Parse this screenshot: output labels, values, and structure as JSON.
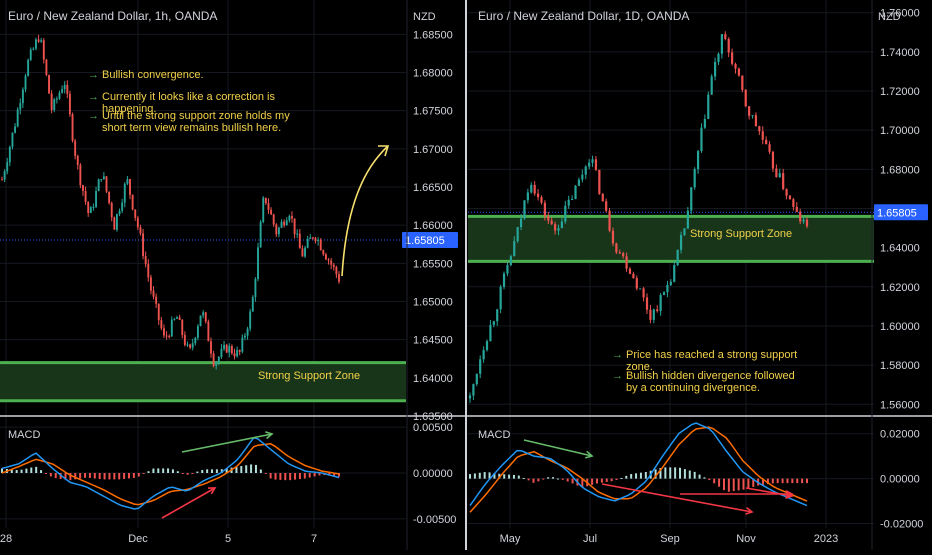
{
  "colors": {
    "background": "#000000",
    "divider": "#d1d4dc",
    "grid": "#15181f",
    "text": "#d1d4dc",
    "bull_candle": "#26a69a",
    "bear_candle": "#ef5350",
    "support_zone_fill": "#18351a",
    "support_zone_border": "#4caf50",
    "support_zone_text": "#f2d14a",
    "annotation_text": "#f2d14a",
    "bullet_arrow": "#4caf50",
    "price_line": "#2962ff",
    "price_label_bg": "#2962ff",
    "macd_line": "#2196f3",
    "signal_line": "#ff6d00",
    "hist_pos": "#b2dfdb",
    "hist_neg": "#ef5350",
    "trend_up_arrow": "#f7e06e",
    "divergence_green": "#66bb6a",
    "divergence_red": "#f23645"
  },
  "icons": {
    "bullet": "arrow-right-icon"
  },
  "panels": [
    {
      "id": "h1",
      "title": "Euro / New Zealand Dollar, 1h, OANDA",
      "currency": "NZD",
      "price_label": "1.65805",
      "zone_label": "Strong Support Zone",
      "macd_label": "MACD",
      "annotations": [
        "Bullish convergence.",
        "Currently it looks like a correction is happening.",
        "Until the strong support zone holds my short term view remains bullish here."
      ]
    },
    {
      "id": "d1",
      "title": "Euro / New Zealand Dollar, 1D, OANDA",
      "currency": "NZD",
      "price_label": "1.65805",
      "zone_label": "Strong Support Zone",
      "macd_label": "MACD",
      "annotations": [
        "Price has reached a strong support zone.",
        "Bullish hidden divergence followed by a continuing divergence."
      ]
    }
  ],
  "chart_data": [
    {
      "type": "candlestick",
      "title": "Euro / New Zealand Dollar, 1h, OANDA",
      "ylabel": "NZD",
      "ylim": [
        1.635,
        1.6895
      ],
      "y_ticks": [
        "1.68500",
        "1.68000",
        "1.67500",
        "1.67000",
        "1.66500",
        "1.66000",
        "1.65500",
        "1.65000",
        "1.64500",
        "1.64000",
        "1.63500"
      ],
      "x_ticks": [
        "28",
        "Dec",
        "5",
        "7"
      ],
      "last_price": 1.65805,
      "support_zone": [
        1.637,
        1.642
      ],
      "price_path": [
        1.666,
        1.673,
        1.681,
        1.685,
        1.675,
        1.679,
        1.668,
        1.661,
        1.667,
        1.66,
        1.666,
        1.659,
        1.651,
        1.645,
        1.648,
        1.643,
        1.649,
        1.642,
        1.644,
        1.643,
        1.649,
        1.664,
        1.659,
        1.662,
        1.656,
        1.659,
        1.656,
        1.653
      ],
      "macd": {
        "ylim": [
          -0.006,
          0.006
        ],
        "y_ticks": [
          "0.00500",
          "0.00000",
          "-0.00500"
        ],
        "macd_path": [
          0.0005,
          0.001,
          0.0022,
          0.0005,
          -0.001,
          -0.0015,
          -0.0025,
          -0.0035,
          -0.004,
          -0.0025,
          -0.0015,
          -0.002,
          -0.0008,
          0.0,
          0.0015,
          0.004,
          0.0025,
          0.001,
          0.0002,
          0.0,
          -0.0005
        ],
        "signal_path": [
          0.0,
          0.0007,
          0.0015,
          0.001,
          -0.0002,
          -0.001,
          -0.0018,
          -0.0028,
          -0.0035,
          -0.003,
          -0.002,
          -0.0018,
          -0.0012,
          -0.0004,
          0.0008,
          0.003,
          0.0032,
          0.0018,
          0.0008,
          0.0002,
          -0.0001
        ],
        "histogram": [
          0.0005,
          0.0003,
          0.0007,
          -0.0005,
          -0.0008,
          -0.0005,
          -0.0007,
          -0.0007,
          -0.0005,
          0.0005,
          0.0005,
          -0.0002,
          0.0004,
          0.0004,
          0.0007,
          0.001,
          -0.0007,
          -0.0008,
          -0.0006,
          -0.0002,
          -0.0004
        ]
      }
    },
    {
      "type": "candlestick",
      "title": "Euro / New Zealand Dollar, 1D, OANDA",
      "ylabel": "NZD",
      "ylim": [
        1.554,
        1.7665
      ],
      "y_ticks": [
        "1.76000",
        "1.74000",
        "1.72000",
        "1.70000",
        "1.68000",
        "1.66000",
        "1.64000",
        "1.62000",
        "1.60000",
        "1.58000",
        "1.56000"
      ],
      "x_ticks": [
        "May",
        "Jul",
        "Sep",
        "Nov",
        "2023"
      ],
      "last_price": 1.65805,
      "support_zone": [
        1.633,
        1.656
      ],
      "price_path": [
        1.563,
        1.588,
        1.605,
        1.628,
        1.649,
        1.676,
        1.66,
        1.648,
        1.66,
        1.673,
        1.688,
        1.664,
        1.642,
        1.632,
        1.62,
        1.605,
        1.615,
        1.63,
        1.655,
        1.69,
        1.725,
        1.748,
        1.732,
        1.711,
        1.7,
        1.684,
        1.672,
        1.658,
        1.65
      ],
      "macd": {
        "ylim": [
          -0.022,
          0.027
        ],
        "y_ticks": [
          "0.02000",
          "0.00000",
          "-0.02000"
        ],
        "macd_path": [
          -0.012,
          -0.002,
          0.006,
          0.013,
          0.01,
          0.009,
          0.004,
          -0.004,
          -0.008,
          -0.01,
          -0.007,
          -0.001,
          0.01,
          0.02,
          0.025,
          0.022,
          0.012,
          0.003,
          -0.002,
          -0.006,
          -0.009,
          -0.012
        ],
        "signal_path": [
          -0.015,
          -0.007,
          0.002,
          0.01,
          0.012,
          0.008,
          0.005,
          0.0,
          -0.006,
          -0.009,
          -0.009,
          -0.004,
          0.005,
          0.015,
          0.022,
          0.023,
          0.018,
          0.008,
          0.001,
          -0.004,
          -0.007,
          -0.01
        ],
        "histogram": [
          0.002,
          0.003,
          0.002,
          0.0015,
          -0.002,
          0.001,
          -0.001,
          -0.004,
          -0.002,
          -0.001,
          0.002,
          0.003,
          0.005,
          0.005,
          0.003,
          -0.001,
          -0.006,
          -0.005,
          -0.003,
          -0.002,
          -0.002,
          -0.002
        ]
      }
    }
  ]
}
